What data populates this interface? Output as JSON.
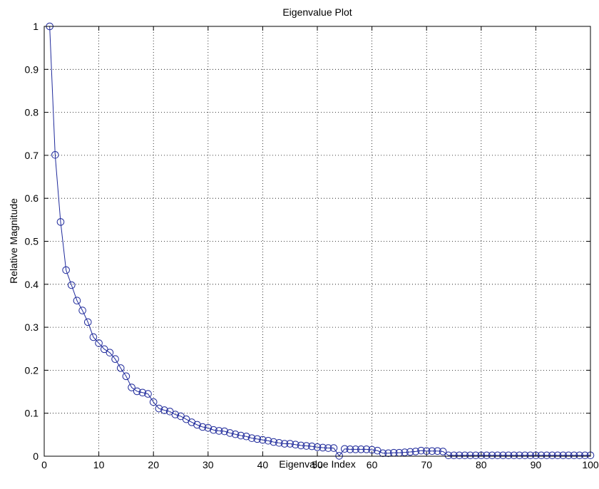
{
  "chart_data": {
    "type": "line",
    "title": "Eigenvalue Plot",
    "xlabel": "Eigenvalue Index",
    "ylabel": "Relative Magnitude",
    "xlim": [
      0,
      100
    ],
    "ylim": [
      0,
      1
    ],
    "xticks": [
      0,
      10,
      20,
      30,
      40,
      50,
      60,
      70,
      80,
      90,
      100
    ],
    "yticks": [
      0,
      0.1,
      0.2,
      0.3,
      0.4,
      0.5,
      0.6,
      0.7,
      0.8,
      0.9,
      1
    ],
    "grid": true,
    "marker": "circle",
    "line_color": "#1f2a9b",
    "series": [
      {
        "x": [
          1,
          2,
          3,
          4,
          5,
          6,
          7,
          8,
          9,
          10,
          11,
          12,
          13,
          14,
          15,
          16,
          17,
          18,
          19,
          20,
          21,
          22,
          23,
          24,
          25,
          26,
          27,
          28,
          29,
          30,
          31,
          32,
          33,
          34,
          35,
          36,
          37,
          38,
          39,
          40,
          41,
          42,
          43,
          44,
          45,
          46,
          47,
          48,
          49,
          50,
          51,
          52,
          53,
          54,
          55,
          56,
          57,
          58,
          59,
          60,
          61,
          62,
          63,
          64,
          65,
          66,
          67,
          68,
          69,
          70,
          71,
          72,
          73,
          74,
          75,
          76,
          77,
          78,
          79,
          80,
          81,
          82,
          83,
          84,
          85,
          86,
          87,
          88,
          89,
          90,
          91,
          92,
          93,
          94,
          95,
          96,
          97,
          98,
          99,
          100
        ],
        "values": [
          1.0,
          0.701,
          0.545,
          0.433,
          0.398,
          0.362,
          0.339,
          0.312,
          0.277,
          0.263,
          0.249,
          0.241,
          0.226,
          0.205,
          0.186,
          0.16,
          0.151,
          0.148,
          0.145,
          0.126,
          0.111,
          0.107,
          0.104,
          0.097,
          0.093,
          0.086,
          0.079,
          0.073,
          0.068,
          0.066,
          0.061,
          0.059,
          0.058,
          0.054,
          0.051,
          0.048,
          0.046,
          0.042,
          0.04,
          0.038,
          0.036,
          0.033,
          0.031,
          0.029,
          0.029,
          0.027,
          0.025,
          0.024,
          0.023,
          0.021,
          0.02,
          0.019,
          0.019,
          0.001,
          0.017,
          0.016,
          0.016,
          0.016,
          0.016,
          0.015,
          0.013,
          0.007,
          0.007,
          0.008,
          0.008,
          0.009,
          0.01,
          0.011,
          0.013,
          0.012,
          0.012,
          0.012,
          0.011,
          0.002,
          0.002,
          0.002,
          0.002,
          0.002,
          0.002,
          0.002,
          0.002,
          0.002,
          0.002,
          0.002,
          0.002,
          0.002,
          0.002,
          0.002,
          0.002,
          0.002,
          0.002,
          0.002,
          0.002,
          0.002,
          0.002,
          0.002,
          0.002,
          0.002,
          0.002,
          0.002
        ]
      }
    ]
  }
}
